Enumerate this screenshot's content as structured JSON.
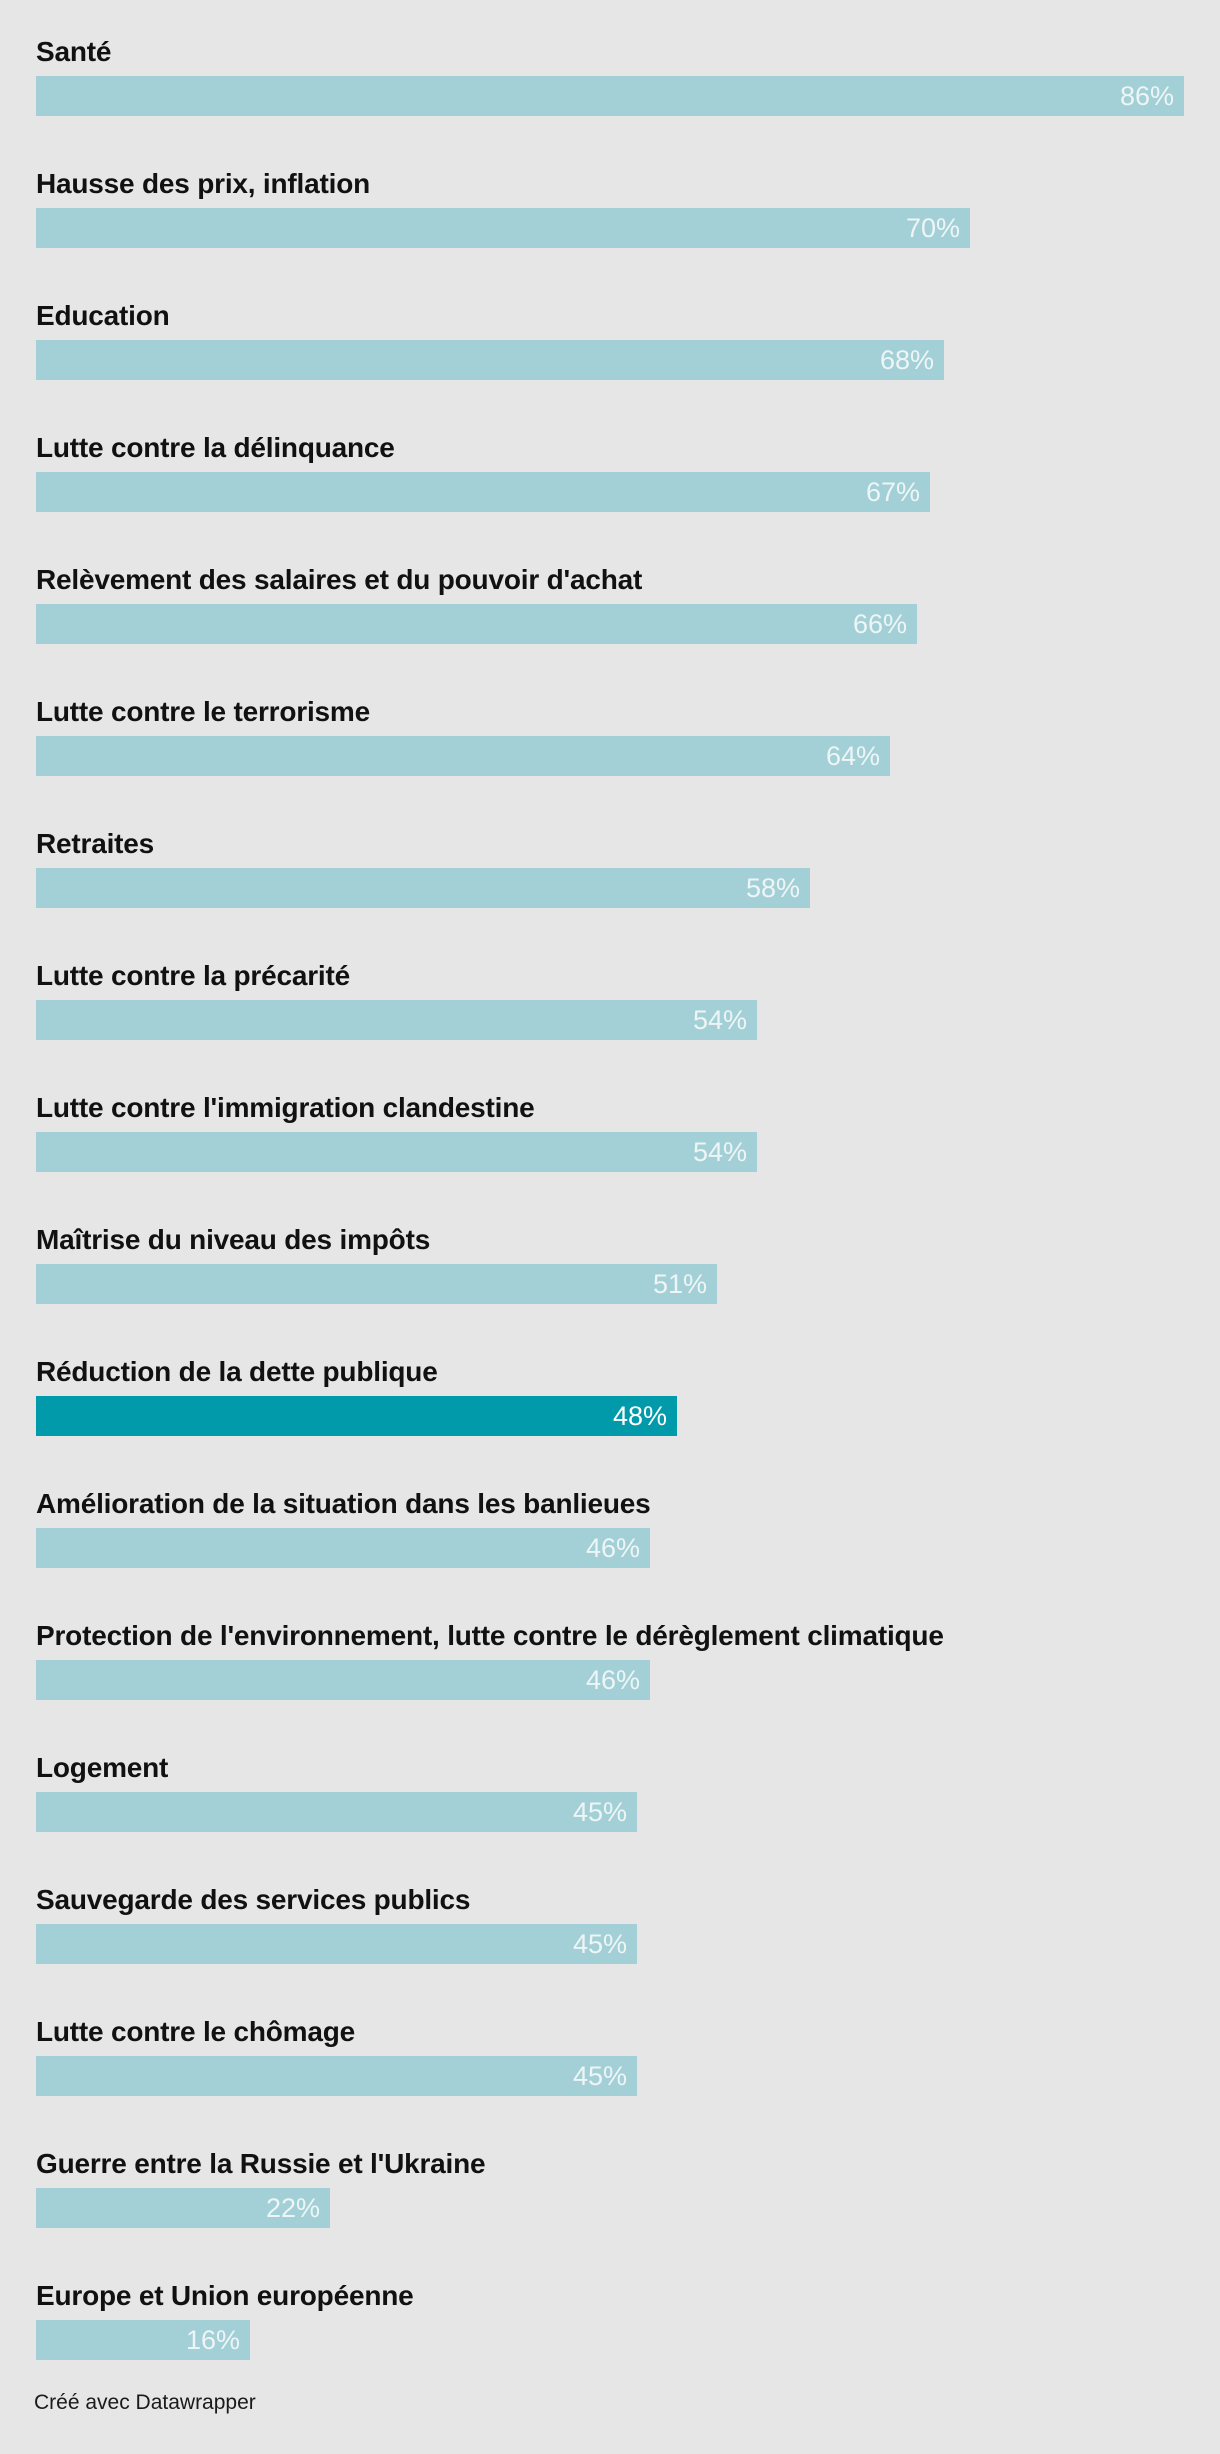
{
  "chart_data": {
    "type": "bar",
    "orientation": "horizontal",
    "categories": [
      "Santé",
      "Hausse des prix, inflation",
      "Education",
      "Lutte contre la délinquance",
      "Relèvement des salaires et du pouvoir d'achat",
      "Lutte contre le terrorisme",
      "Retraites",
      "Lutte contre la précarité",
      "Lutte contre l'immigration clandestine",
      "Maîtrise du niveau des impôts",
      "Réduction de la dette publique",
      "Amélioration de la situation dans les banlieues",
      "Protection de l'environnement, lutte contre le dérèglement climatique",
      "Logement",
      "Sauvegarde des services publics",
      "Lutte contre le chômage",
      "Guerre entre la Russie et l'Ukraine",
      "Europe et Union européenne"
    ],
    "values": [
      86,
      70,
      68,
      67,
      66,
      64,
      58,
      54,
      54,
      51,
      48,
      46,
      46,
      45,
      45,
      45,
      22,
      16
    ],
    "value_labels": [
      "86%",
      "70%",
      "68%",
      "67%",
      "66%",
      "64%",
      "58%",
      "54%",
      "54%",
      "51%",
      "48%",
      "46%",
      "46%",
      "45%",
      "45%",
      "45%",
      "22%",
      "16%"
    ],
    "highlighted_category": "Réduction de la dette publique",
    "xlim": [
      0,
      86
    ],
    "grid": false,
    "colors": {
      "bar": "#a3d0d6",
      "highlight": "#009aab",
      "value_text": "#eef5f6",
      "label_text": "#111111",
      "background": "#e6e6e6"
    }
  },
  "footer": {
    "credit": "Créé avec Datawrapper"
  }
}
